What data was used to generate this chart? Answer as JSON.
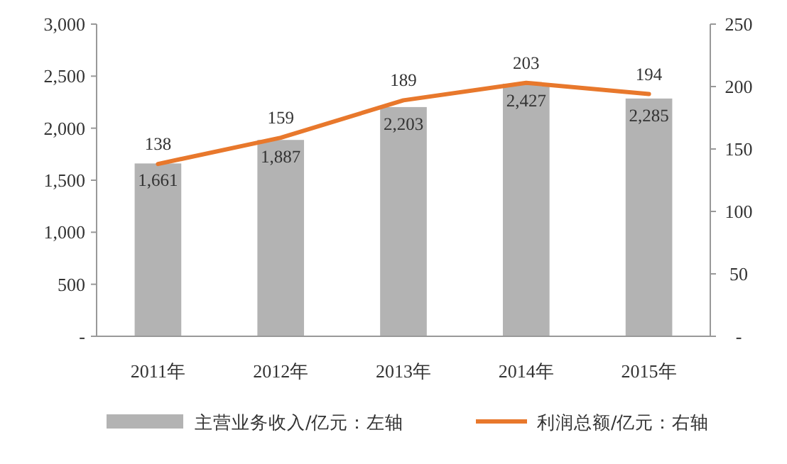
{
  "chart_data": {
    "type": "bar",
    "categories": [
      "2011年",
      "2012年",
      "2013年",
      "2014年",
      "2015年"
    ],
    "series": [
      {
        "name": "主营业务收入/亿元：左轴",
        "color": "#b3b3b3",
        "values": [
          1661,
          1887,
          2203,
          2427,
          2285
        ],
        "value_labels": [
          "1,661",
          "1,887",
          "2,203",
          "2,427",
          "2,285"
        ]
      },
      {
        "name": "利润总额/亿元：右轴",
        "type": "line",
        "axis": "y2",
        "color": "#e8782c",
        "values": [
          138,
          159,
          189,
          203,
          194
        ]
      }
    ],
    "ylim": [
      0,
      3000
    ],
    "yticks": [
      {
        "value": 0,
        "label": "-"
      },
      {
        "value": 500,
        "label": "500"
      },
      {
        "value": 1000,
        "label": "1,000"
      },
      {
        "value": 1500,
        "label": "1,500"
      },
      {
        "value": 2000,
        "label": "2,000"
      },
      {
        "value": 2500,
        "label": "2,500"
      },
      {
        "value": 3000,
        "label": "3,000"
      }
    ],
    "y2lim": [
      0,
      250
    ],
    "y2ticks": [
      {
        "value": 0,
        "label": "-"
      },
      50,
      100,
      150,
      200,
      250
    ],
    "data_labels": true,
    "legend": "bottom",
    "grid": false,
    "marker": "none",
    "line_style": "solid"
  }
}
